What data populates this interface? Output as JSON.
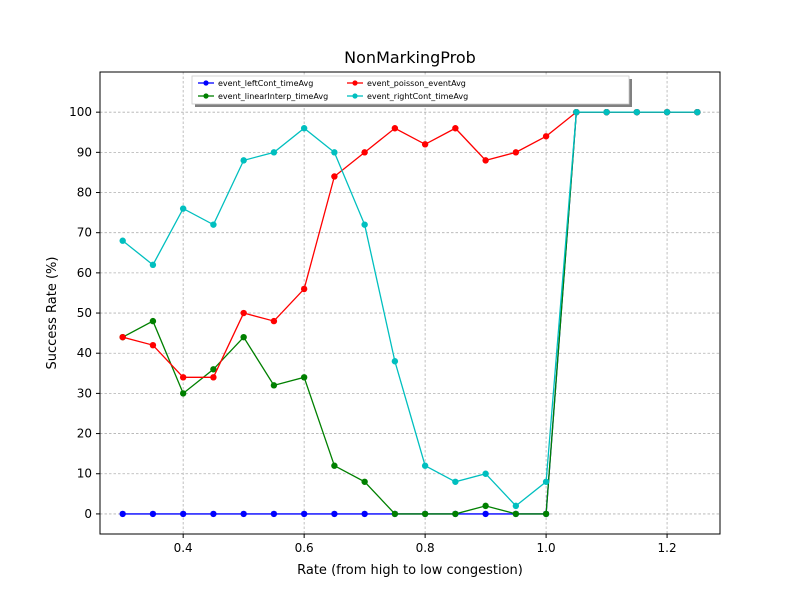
{
  "chart_data": {
    "type": "line",
    "title": "NonMarkingProb",
    "xlabel": "Rate (from high to low congestion)",
    "ylabel": "Success Rate (%)",
    "xlim": [
      0.2625,
      1.2875
    ],
    "ylim": [
      -5,
      110
    ],
    "xticks": [
      0.4,
      0.6,
      0.8,
      1.0,
      1.2
    ],
    "xtick_labels": [
      "0.4",
      "0.6",
      "0.8",
      "1.0",
      "1.2"
    ],
    "yticks": [
      0,
      10,
      20,
      30,
      40,
      50,
      60,
      70,
      80,
      90,
      100
    ],
    "ytick_labels": [
      "0",
      "10",
      "20",
      "30",
      "40",
      "50",
      "60",
      "70",
      "80",
      "90",
      "100"
    ],
    "grid": true,
    "legend_position": "top-center",
    "x": [
      0.3,
      0.35,
      0.4,
      0.45,
      0.5,
      0.55,
      0.6,
      0.65,
      0.7,
      0.75,
      0.8,
      0.85,
      0.9,
      0.95,
      1.0,
      1.05,
      1.1,
      1.15,
      1.2,
      1.25
    ],
    "series": [
      {
        "name": "event_leftCont_timeAvg",
        "color": "#0000ff",
        "values": [
          0,
          0,
          0,
          0,
          0,
          0,
          0,
          0,
          0,
          0,
          0,
          0,
          0,
          0,
          0,
          100,
          100,
          100,
          100,
          100
        ]
      },
      {
        "name": "event_linearInterp_timeAvg",
        "color": "#008000",
        "values": [
          44,
          48,
          30,
          36,
          44,
          32,
          34,
          12,
          8,
          0,
          0,
          0,
          2,
          0,
          0,
          100,
          100,
          100,
          100,
          100
        ]
      },
      {
        "name": "event_poisson_eventAvg",
        "color": "#ff0000",
        "values": [
          44,
          42,
          34,
          34,
          50,
          48,
          56,
          84,
          90,
          96,
          92,
          96,
          88,
          90,
          94,
          100,
          100,
          100,
          100,
          100
        ]
      },
      {
        "name": "event_rightCont_timeAvg",
        "color": "#00bfbf",
        "values": [
          68,
          62,
          76,
          72,
          88,
          90,
          96,
          90,
          72,
          38,
          12,
          8,
          10,
          2,
          8,
          100,
          100,
          100,
          100,
          100
        ]
      }
    ]
  }
}
